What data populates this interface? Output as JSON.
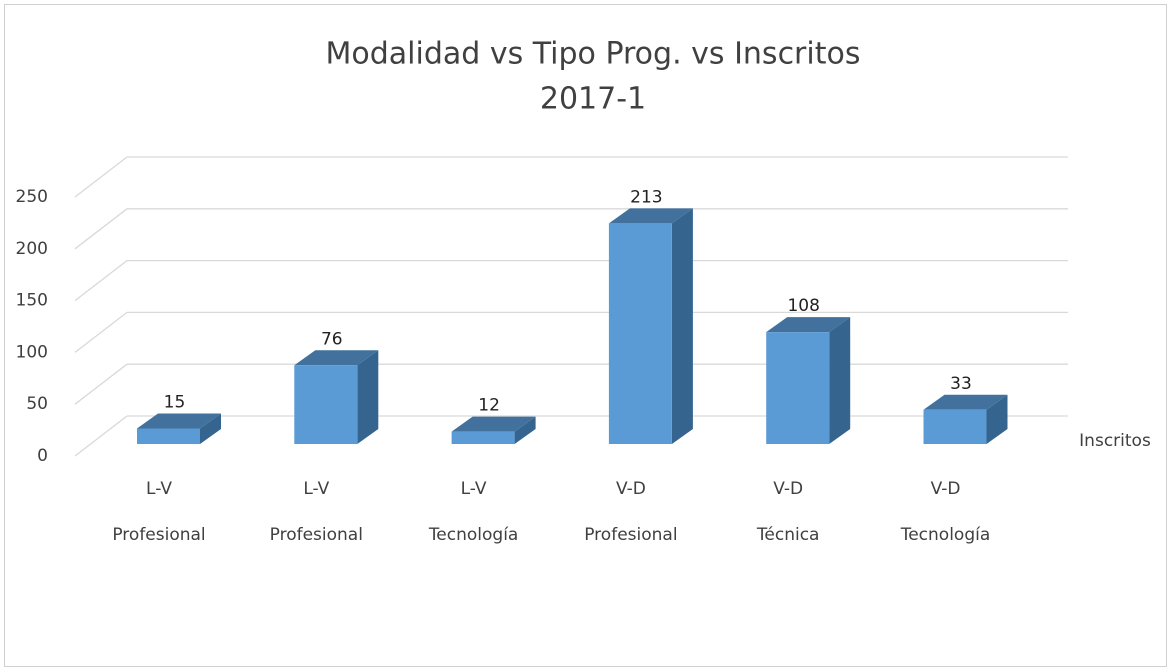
{
  "chart_data": {
    "type": "bar3d",
    "title": "Modalidad vs Tipo Prog. vs Inscritos",
    "subtitle": "2017-1",
    "categories": [
      [
        "L-V",
        "Profesional"
      ],
      [
        "L-V",
        "Profesional"
      ],
      [
        "L-V",
        "Tecnología"
      ],
      [
        "V-D",
        "Profesional"
      ],
      [
        "V-D",
        "Técnica"
      ],
      [
        "V-D",
        "Tecnología"
      ]
    ],
    "series": [
      {
        "name": "Inscritos",
        "color": "#5b9bd5",
        "values": [
          15,
          76,
          12,
          213,
          108,
          33
        ]
      }
    ],
    "ylim": [
      0,
      250
    ],
    "yticks": [
      0,
      50,
      100,
      150,
      200,
      250
    ],
    "grid": true
  }
}
